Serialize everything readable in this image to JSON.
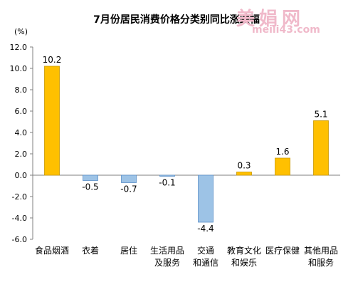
{
  "chart_data": {
    "type": "bar",
    "title": "7月份居民消费价格分类别同比涨跌幅",
    "ylabel": "(%)",
    "xlabel": "",
    "ylim": [
      -6.0,
      12.0
    ],
    "yticks": [
      "12.0",
      "10.0",
      "8.0",
      "6.0",
      "4.0",
      "2.0",
      "0.0",
      "-2.0",
      "-4.0",
      "-6.0"
    ],
    "categories": [
      [
        "食品烟酒"
      ],
      [
        "衣着"
      ],
      [
        "居住"
      ],
      [
        "生活用品",
        "及服务"
      ],
      [
        "交通",
        "和通信"
      ],
      [
        "教育文化",
        "和娱乐"
      ],
      [
        "医疗保健"
      ],
      [
        "其他用品",
        "和服务"
      ]
    ],
    "values": [
      10.2,
      -0.5,
      -0.7,
      -0.1,
      -4.4,
      0.3,
      1.6,
      5.1
    ],
    "value_labels": [
      "10.2",
      "-0.5",
      "-0.7",
      "-0.1",
      "-4.4",
      "0.3",
      "1.6",
      "5.1"
    ],
    "colors": {
      "positive": "#ffc000",
      "negative": "#9dc3e6",
      "positive_stroke": "#c99700",
      "negative_stroke": "#5b8fc7"
    },
    "grid": false,
    "legend": "none"
  },
  "watermark": {
    "main": "美娟网",
    "sub": "meili43.com"
  }
}
